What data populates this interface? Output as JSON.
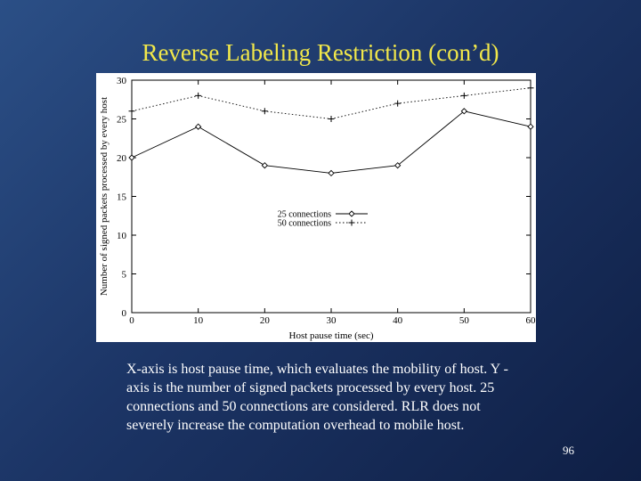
{
  "slide": {
    "title": "Reverse Labeling Restriction (con’d)",
    "caption": "X-axis is host pause time, which evaluates the mobility of host. Y -axis is the number of signed packets processed by every host. 25 connections and 50 connections are considered. RLR does not severely increase the computation overhead to mobile host.",
    "page_number": "96",
    "colors": {
      "background": "#1c3566",
      "title": "#f2e84a",
      "text": "#ffffff"
    }
  },
  "chart_data": {
    "type": "line",
    "title": "",
    "xlabel": "Host pause time (sec)",
    "ylabel": "Number of signed packets processed by every host",
    "x": [
      0,
      10,
      20,
      30,
      40,
      50,
      60
    ],
    "xlim": [
      0,
      60
    ],
    "ylim": [
      0,
      30
    ],
    "xticks": [
      0,
      10,
      20,
      30,
      40,
      50,
      60
    ],
    "yticks": [
      0,
      5,
      10,
      15,
      20,
      25,
      30
    ],
    "grid": false,
    "legend_position": "center",
    "series": [
      {
        "name": "25 connections",
        "values": [
          20,
          24,
          19,
          18,
          19,
          26,
          24
        ],
        "marker": "diamond",
        "line": "solid"
      },
      {
        "name": "50 connections",
        "values": [
          26,
          28,
          26,
          25,
          27,
          28,
          29
        ],
        "marker": "plus",
        "line": "dotted"
      }
    ]
  }
}
